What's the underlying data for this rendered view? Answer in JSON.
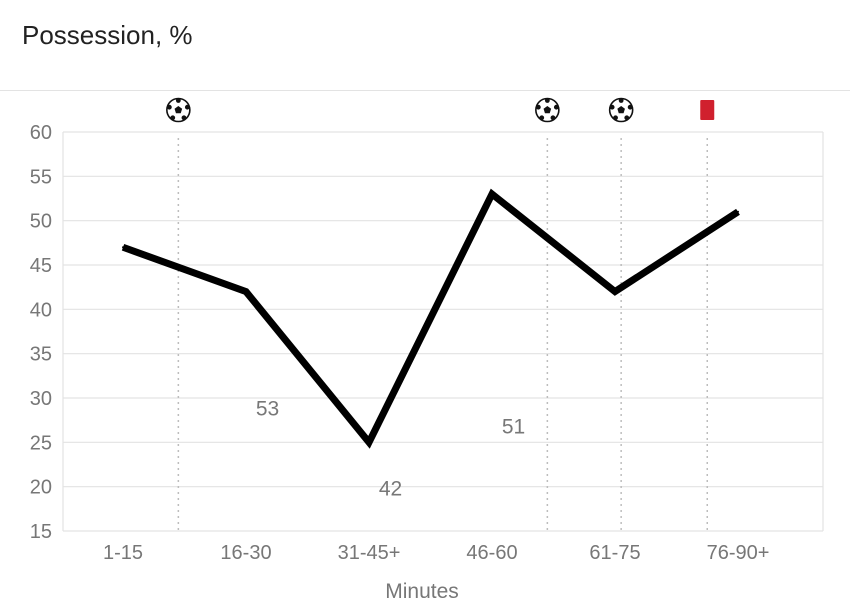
{
  "header": {
    "title": "Possession, %"
  },
  "chart_data": {
    "type": "line",
    "xlabel": "Minutes",
    "ylabel": "",
    "ylim": [
      15,
      60
    ],
    "yticks": [
      15,
      20,
      25,
      30,
      35,
      40,
      45,
      50,
      55,
      60
    ],
    "categories": [
      "1-15",
      "16-30",
      "31-45+",
      "46-60",
      "61-75",
      "76-90+"
    ],
    "series": [
      {
        "values": [
          47,
          42,
          25,
          53,
          42,
          51
        ],
        "color": "#000000"
      }
    ],
    "grid": true,
    "annotations": [
      {
        "text": "53",
        "x": 1.5,
        "y": 28
      },
      {
        "text": "42",
        "x": 2.5,
        "y": 19
      },
      {
        "text": "51",
        "x": 3.5,
        "y": 26
      }
    ],
    "events": [
      {
        "type": "goal",
        "icon": "soccer-ball-icon",
        "x": 0.45
      },
      {
        "type": "goal",
        "icon": "soccer-ball-icon",
        "x": 3.45
      },
      {
        "type": "goal",
        "icon": "soccer-ball-icon",
        "x": 4.05
      },
      {
        "type": "red-card",
        "icon": "red-card-icon",
        "x": 4.75,
        "color": "#d0202e"
      }
    ]
  }
}
